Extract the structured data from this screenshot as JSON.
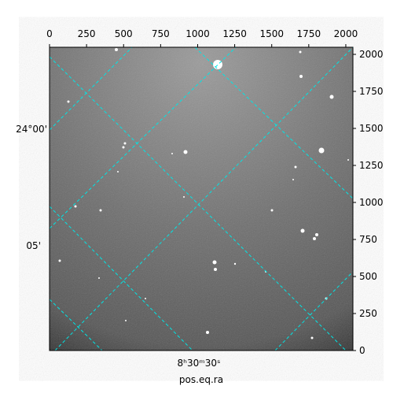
{
  "chart_data": {
    "type": "image",
    "xlim": [
      0,
      2048
    ],
    "xticks": [
      0,
      250,
      500,
      750,
      1000,
      1250,
      1500,
      1750,
      2000
    ],
    "ylim": [
      0,
      2048
    ],
    "yticks": [
      0,
      250,
      500,
      750,
      1000,
      1250,
      1500,
      1750,
      2000
    ],
    "dec_labels": [
      "24°00'",
      "05'"
    ],
    "ra_labels": [
      "8ʰ30ᵐ30ˢ"
    ],
    "xlabel": "pos.eq.ra"
  }
}
